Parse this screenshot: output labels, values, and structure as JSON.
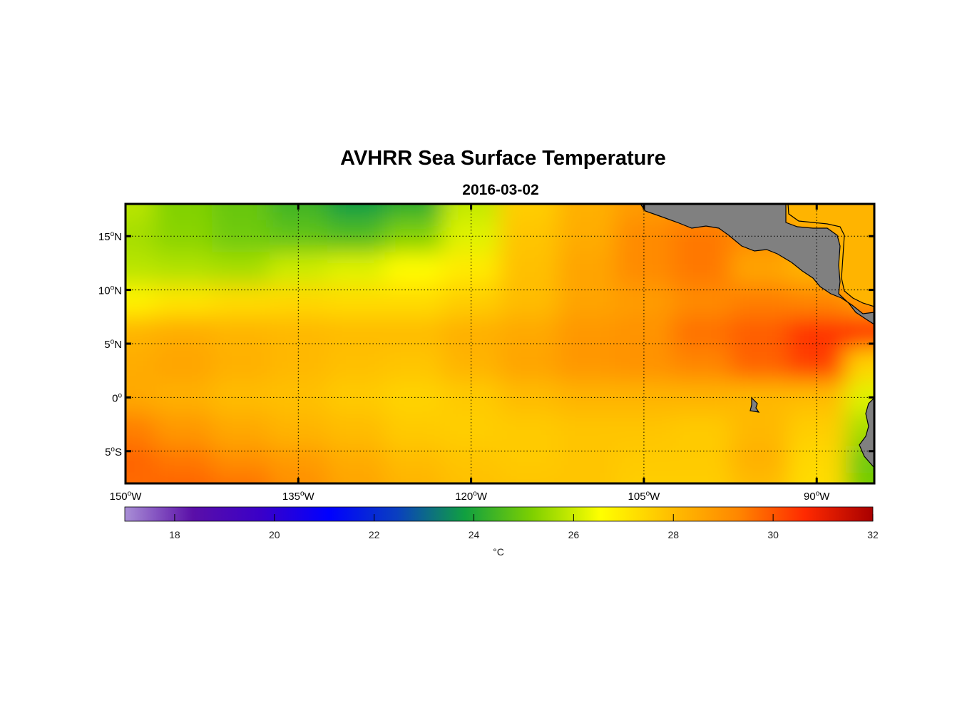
{
  "title": "AVHRR Sea Surface Temperature",
  "subtitle": "2016-03-02",
  "map": {
    "lon_range": [
      -150,
      -85
    ],
    "lat_range": [
      -8,
      18
    ],
    "lon_ticks": [
      {
        "value": -150,
        "num": "150",
        "hem": "W"
      },
      {
        "value": -135,
        "num": "135",
        "hem": "W"
      },
      {
        "value": -120,
        "num": "120",
        "hem": "W"
      },
      {
        "value": -105,
        "num": "105",
        "hem": "W"
      },
      {
        "value": -90,
        "num": "90",
        "hem": "W"
      }
    ],
    "lat_ticks": [
      {
        "value": 15,
        "num": "15",
        "hem": "N"
      },
      {
        "value": 10,
        "num": "10",
        "hem": "N"
      },
      {
        "value": 5,
        "num": "5",
        "hem": "N"
      },
      {
        "value": 0,
        "num": "0",
        "hem": ""
      },
      {
        "value": -5,
        "num": "5",
        "hem": "S"
      }
    ],
    "land_color": "#808080",
    "grid": "dotted"
  },
  "colorbar": {
    "min": 17,
    "max": 32,
    "ticks": [
      "18",
      "20",
      "22",
      "24",
      "26",
      "28",
      "30",
      "32"
    ],
    "unit": "°C",
    "colors": [
      "#a98fd6",
      "#5a0fa8",
      "#3a00c8",
      "#0000ff",
      "#0a3fc0",
      "#10a040",
      "#7fd000",
      "#ffff00",
      "#ffc000",
      "#ff8800",
      "#ff2a00",
      "#a80000"
    ]
  },
  "chart_data": {
    "type": "heatmap",
    "title": "AVHRR Sea Surface Temperature",
    "subtitle": "2016-03-02",
    "xlabel": "",
    "ylabel": "",
    "x_range": [
      -150,
      -85
    ],
    "y_range": [
      -8,
      18
    ],
    "color_range": [
      17,
      32
    ],
    "colorbar_label": "°C",
    "lon_grid": [
      -150,
      -145,
      -140,
      -135,
      -130,
      -125,
      -120,
      -115,
      -110,
      -105,
      -100,
      -95,
      -90,
      -85
    ],
    "lat_grid": [
      18,
      15,
      12,
      9,
      6,
      3,
      0,
      -3,
      -6,
      -8
    ],
    "values": [
      [
        25.8,
        25.2,
        24.9,
        24.4,
        23.8,
        24.2,
        25.9,
        27.6,
        28.3,
        28.8,
        29.0,
        28.6,
        27.8,
        27.8
      ],
      [
        25.6,
        25.3,
        25.0,
        24.8,
        24.6,
        25.2,
        26.2,
        27.8,
        28.4,
        29.2,
        29.5,
        29.2,
        28.7,
        27.8
      ],
      [
        25.8,
        25.7,
        25.6,
        26.0,
        26.2,
        26.6,
        27.0,
        27.9,
        28.6,
        29.2,
        29.5,
        28.6,
        28.2,
        27.9
      ],
      [
        26.8,
        27.1,
        27.3,
        27.4,
        27.3,
        27.3,
        27.6,
        28.0,
        28.6,
        28.8,
        29.2,
        29.4,
        29.3,
        28.8
      ],
      [
        28.2,
        28.4,
        28.2,
        28.1,
        28.0,
        28.0,
        28.3,
        28.5,
        28.9,
        29.0,
        29.6,
        29.9,
        30.5,
        30.6
      ],
      [
        28.4,
        28.6,
        28.3,
        28.1,
        27.9,
        27.8,
        28.2,
        28.6,
        28.9,
        29.0,
        29.3,
        29.8,
        30.3,
        27.5
      ],
      [
        28.5,
        28.3,
        28.0,
        27.9,
        27.7,
        27.5,
        27.7,
        28.0,
        28.2,
        28.2,
        28.2,
        28.1,
        28.0,
        26.2
      ],
      [
        29.4,
        28.9,
        28.5,
        28.2,
        28.0,
        27.7,
        27.6,
        27.7,
        27.8,
        27.8,
        27.7,
        28.1,
        27.6,
        25.6
      ],
      [
        29.8,
        29.5,
        29.1,
        28.8,
        28.4,
        28.0,
        27.8,
        27.7,
        27.8,
        27.7,
        27.7,
        28.3,
        27.4,
        25.0
      ],
      [
        29.7,
        29.8,
        29.6,
        29.1,
        28.6,
        28.2,
        27.9,
        27.8,
        27.8,
        27.6,
        27.6,
        28.0,
        27.3,
        25.1
      ]
    ]
  }
}
